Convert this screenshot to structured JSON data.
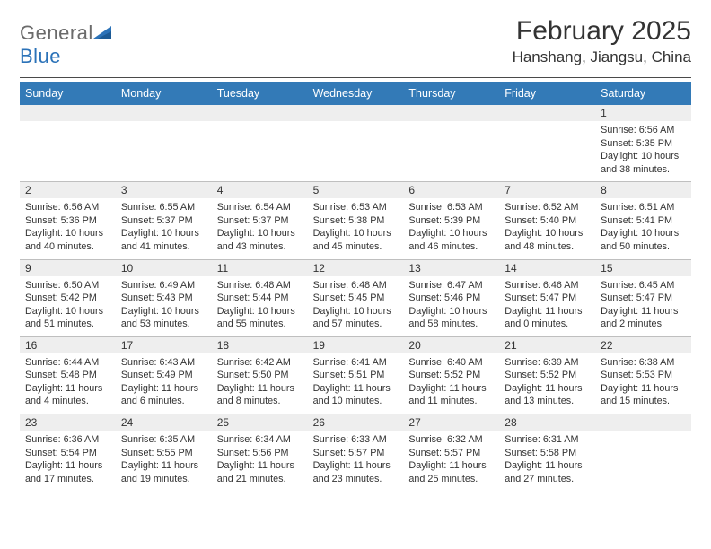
{
  "logo": {
    "text1": "General",
    "text2": "Blue"
  },
  "title": "February 2025",
  "location": "Hanshang, Jiangsu, China",
  "colors": {
    "header_bg": "#337ab7",
    "header_text": "#ffffff",
    "daynum_bg": "#eeeeee",
    "divider": "#bfbfbf",
    "text": "#333333",
    "logo_gray": "#6b6b6b",
    "logo_blue": "#2b72b8"
  },
  "weekdays": [
    "Sunday",
    "Monday",
    "Tuesday",
    "Wednesday",
    "Thursday",
    "Friday",
    "Saturday"
  ],
  "weeks": [
    [
      {
        "day": "",
        "sunrise": "",
        "sunset": "",
        "daylight": ""
      },
      {
        "day": "",
        "sunrise": "",
        "sunset": "",
        "daylight": ""
      },
      {
        "day": "",
        "sunrise": "",
        "sunset": "",
        "daylight": ""
      },
      {
        "day": "",
        "sunrise": "",
        "sunset": "",
        "daylight": ""
      },
      {
        "day": "",
        "sunrise": "",
        "sunset": "",
        "daylight": ""
      },
      {
        "day": "",
        "sunrise": "",
        "sunset": "",
        "daylight": ""
      },
      {
        "day": "1",
        "sunrise": "Sunrise: 6:56 AM",
        "sunset": "Sunset: 5:35 PM",
        "daylight": "Daylight: 10 hours and 38 minutes."
      }
    ],
    [
      {
        "day": "2",
        "sunrise": "Sunrise: 6:56 AM",
        "sunset": "Sunset: 5:36 PM",
        "daylight": "Daylight: 10 hours and 40 minutes."
      },
      {
        "day": "3",
        "sunrise": "Sunrise: 6:55 AM",
        "sunset": "Sunset: 5:37 PM",
        "daylight": "Daylight: 10 hours and 41 minutes."
      },
      {
        "day": "4",
        "sunrise": "Sunrise: 6:54 AM",
        "sunset": "Sunset: 5:37 PM",
        "daylight": "Daylight: 10 hours and 43 minutes."
      },
      {
        "day": "5",
        "sunrise": "Sunrise: 6:53 AM",
        "sunset": "Sunset: 5:38 PM",
        "daylight": "Daylight: 10 hours and 45 minutes."
      },
      {
        "day": "6",
        "sunrise": "Sunrise: 6:53 AM",
        "sunset": "Sunset: 5:39 PM",
        "daylight": "Daylight: 10 hours and 46 minutes."
      },
      {
        "day": "7",
        "sunrise": "Sunrise: 6:52 AM",
        "sunset": "Sunset: 5:40 PM",
        "daylight": "Daylight: 10 hours and 48 minutes."
      },
      {
        "day": "8",
        "sunrise": "Sunrise: 6:51 AM",
        "sunset": "Sunset: 5:41 PM",
        "daylight": "Daylight: 10 hours and 50 minutes."
      }
    ],
    [
      {
        "day": "9",
        "sunrise": "Sunrise: 6:50 AM",
        "sunset": "Sunset: 5:42 PM",
        "daylight": "Daylight: 10 hours and 51 minutes."
      },
      {
        "day": "10",
        "sunrise": "Sunrise: 6:49 AM",
        "sunset": "Sunset: 5:43 PM",
        "daylight": "Daylight: 10 hours and 53 minutes."
      },
      {
        "day": "11",
        "sunrise": "Sunrise: 6:48 AM",
        "sunset": "Sunset: 5:44 PM",
        "daylight": "Daylight: 10 hours and 55 minutes."
      },
      {
        "day": "12",
        "sunrise": "Sunrise: 6:48 AM",
        "sunset": "Sunset: 5:45 PM",
        "daylight": "Daylight: 10 hours and 57 minutes."
      },
      {
        "day": "13",
        "sunrise": "Sunrise: 6:47 AM",
        "sunset": "Sunset: 5:46 PM",
        "daylight": "Daylight: 10 hours and 58 minutes."
      },
      {
        "day": "14",
        "sunrise": "Sunrise: 6:46 AM",
        "sunset": "Sunset: 5:47 PM",
        "daylight": "Daylight: 11 hours and 0 minutes."
      },
      {
        "day": "15",
        "sunrise": "Sunrise: 6:45 AM",
        "sunset": "Sunset: 5:47 PM",
        "daylight": "Daylight: 11 hours and 2 minutes."
      }
    ],
    [
      {
        "day": "16",
        "sunrise": "Sunrise: 6:44 AM",
        "sunset": "Sunset: 5:48 PM",
        "daylight": "Daylight: 11 hours and 4 minutes."
      },
      {
        "day": "17",
        "sunrise": "Sunrise: 6:43 AM",
        "sunset": "Sunset: 5:49 PM",
        "daylight": "Daylight: 11 hours and 6 minutes."
      },
      {
        "day": "18",
        "sunrise": "Sunrise: 6:42 AM",
        "sunset": "Sunset: 5:50 PM",
        "daylight": "Daylight: 11 hours and 8 minutes."
      },
      {
        "day": "19",
        "sunrise": "Sunrise: 6:41 AM",
        "sunset": "Sunset: 5:51 PM",
        "daylight": "Daylight: 11 hours and 10 minutes."
      },
      {
        "day": "20",
        "sunrise": "Sunrise: 6:40 AM",
        "sunset": "Sunset: 5:52 PM",
        "daylight": "Daylight: 11 hours and 11 minutes."
      },
      {
        "day": "21",
        "sunrise": "Sunrise: 6:39 AM",
        "sunset": "Sunset: 5:52 PM",
        "daylight": "Daylight: 11 hours and 13 minutes."
      },
      {
        "day": "22",
        "sunrise": "Sunrise: 6:38 AM",
        "sunset": "Sunset: 5:53 PM",
        "daylight": "Daylight: 11 hours and 15 minutes."
      }
    ],
    [
      {
        "day": "23",
        "sunrise": "Sunrise: 6:36 AM",
        "sunset": "Sunset: 5:54 PM",
        "daylight": "Daylight: 11 hours and 17 minutes."
      },
      {
        "day": "24",
        "sunrise": "Sunrise: 6:35 AM",
        "sunset": "Sunset: 5:55 PM",
        "daylight": "Daylight: 11 hours and 19 minutes."
      },
      {
        "day": "25",
        "sunrise": "Sunrise: 6:34 AM",
        "sunset": "Sunset: 5:56 PM",
        "daylight": "Daylight: 11 hours and 21 minutes."
      },
      {
        "day": "26",
        "sunrise": "Sunrise: 6:33 AM",
        "sunset": "Sunset: 5:57 PM",
        "daylight": "Daylight: 11 hours and 23 minutes."
      },
      {
        "day": "27",
        "sunrise": "Sunrise: 6:32 AM",
        "sunset": "Sunset: 5:57 PM",
        "daylight": "Daylight: 11 hours and 25 minutes."
      },
      {
        "day": "28",
        "sunrise": "Sunrise: 6:31 AM",
        "sunset": "Sunset: 5:58 PM",
        "daylight": "Daylight: 11 hours and 27 minutes."
      },
      {
        "day": "",
        "sunrise": "",
        "sunset": "",
        "daylight": ""
      }
    ]
  ]
}
